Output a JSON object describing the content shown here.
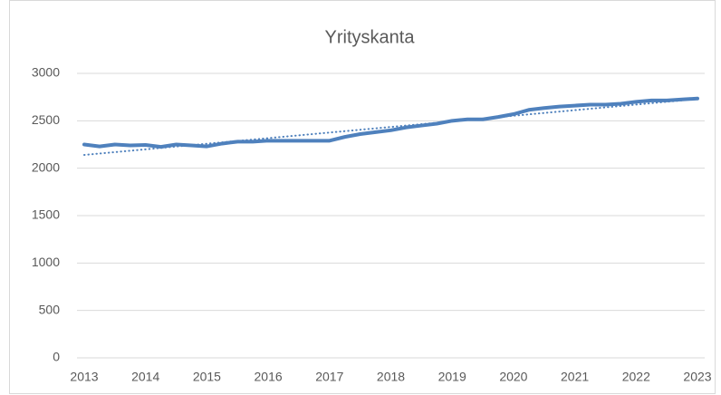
{
  "chart_data": {
    "type": "line",
    "title": "Yrityskanta",
    "x": [
      2013,
      2013.25,
      2013.5,
      2013.75,
      2014,
      2014.25,
      2014.5,
      2014.75,
      2015,
      2015.25,
      2015.5,
      2015.75,
      2016,
      2016.25,
      2016.5,
      2016.75,
      2017,
      2017.25,
      2017.5,
      2017.75,
      2018,
      2018.25,
      2018.5,
      2018.75,
      2019,
      2019.25,
      2019.5,
      2019.75,
      2020,
      2020.25,
      2020.5,
      2020.75,
      2021,
      2021.25,
      2021.5,
      2021.75,
      2022,
      2022.25,
      2022.5,
      2022.75,
      2023
    ],
    "series": [
      {
        "color": "#4f81bd",
        "values": [
          2250,
          2230,
          2250,
          2240,
          2245,
          2225,
          2250,
          2240,
          2230,
          2260,
          2280,
          2280,
          2290,
          2290,
          2290,
          2290,
          2290,
          2330,
          2360,
          2380,
          2400,
          2430,
          2450,
          2470,
          2500,
          2515,
          2515,
          2540,
          2570,
          2615,
          2635,
          2650,
          2660,
          2670,
          2670,
          2680,
          2700,
          2715,
          2715,
          2725,
          2735
        ]
      },
      {
        "color": "#4f81bd",
        "dotted": true,
        "x": [
          2013,
          2023
        ],
        "values": [
          2140,
          2730
        ]
      }
    ],
    "xlim": [
      2013,
      2023
    ],
    "xticks": [
      2013,
      2014,
      2015,
      2016,
      2017,
      2018,
      2019,
      2020,
      2021,
      2022,
      2023
    ],
    "ylim": [
      0,
      3000
    ],
    "yticks": [
      0,
      500,
      1000,
      1500,
      2000,
      2500,
      3000
    ],
    "grid": true
  }
}
